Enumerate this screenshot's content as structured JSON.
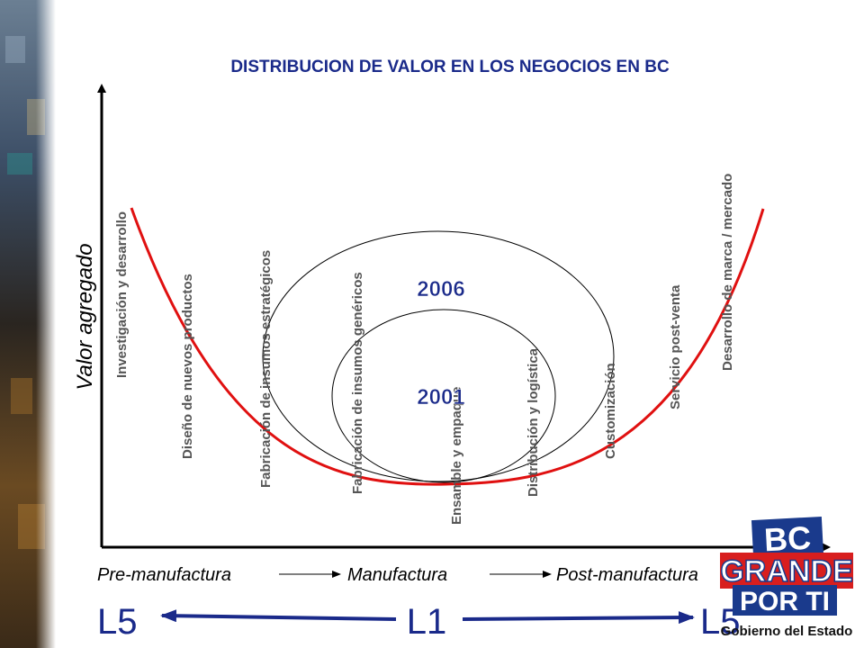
{
  "title": "DISTRIBUCION DE VALOR EN LOS NEGOCIOS EN BC",
  "y_axis_label": "Valor agregado",
  "stages": [
    "Investigación y desarrollo",
    "Diseño de nuevos productos",
    "Fabricación de insumos estratégicos",
    "Fabricación de insumos genéricos",
    "Ensamble y empaque",
    "Distribución y logística",
    "Customización",
    "Servicio post-venta",
    "Desarrollo de marca / mercado"
  ],
  "years": {
    "outer": "2006",
    "inner": "2001"
  },
  "phases": {
    "pre": "Pre-manufactura",
    "mid": "Manufactura",
    "post": "Post-manufactura"
  },
  "levels": {
    "left": "L5",
    "center": "L1",
    "right": "L5"
  },
  "logo": {
    "line1": "BC",
    "line2": "GRANDE",
    "line3": "POR TI",
    "line4": "Gobierno del Estado"
  },
  "colors": {
    "curve": "#e01010",
    "level_text": "#1a2a8a",
    "logo_blue": "#1a3a8c",
    "logo_red": "#d81e1e",
    "title": "#1a2a8a"
  }
}
